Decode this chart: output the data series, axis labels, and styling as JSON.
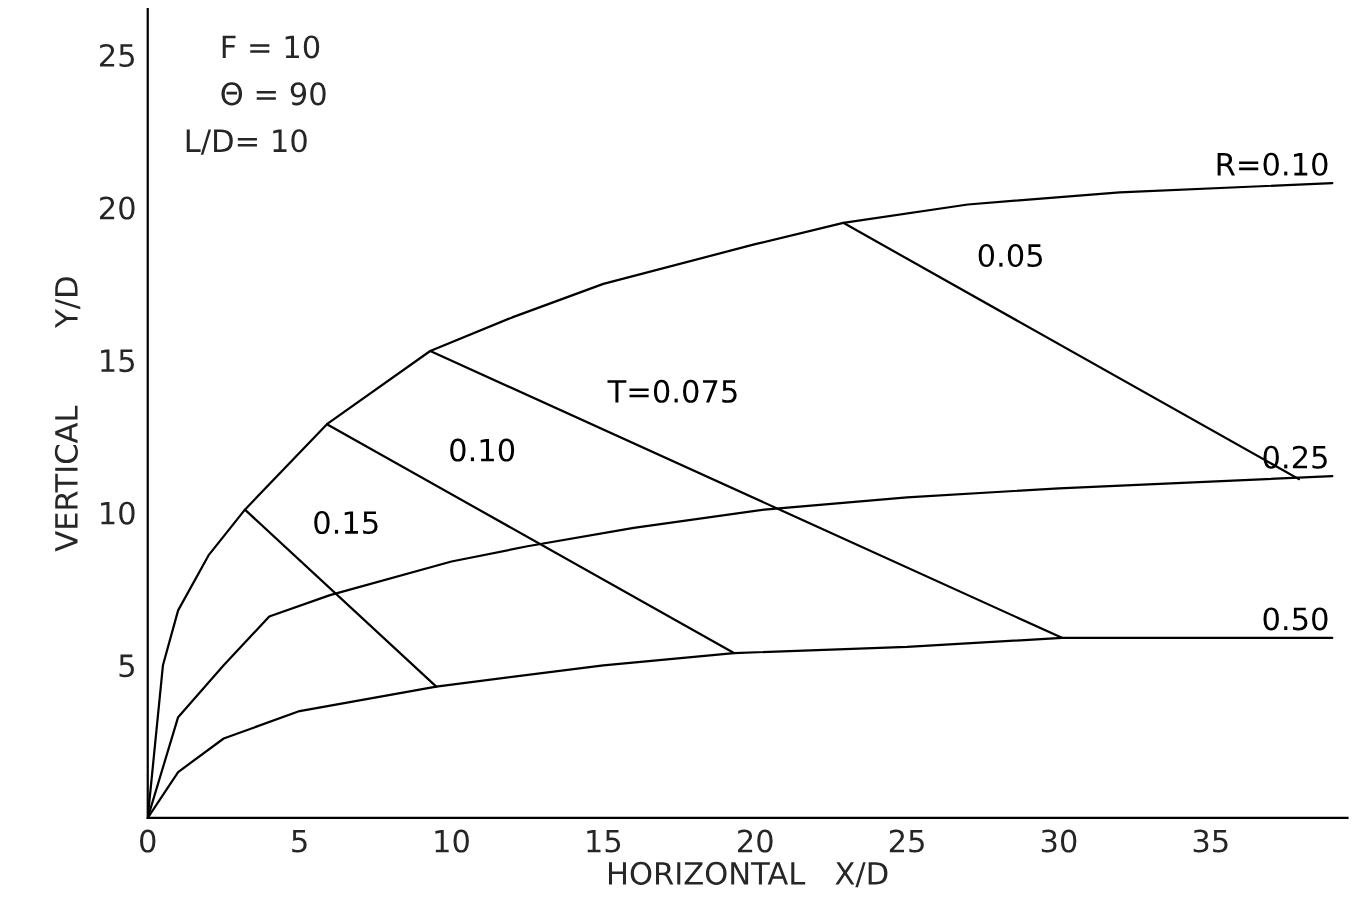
{
  "chart_data": {
    "type": "line",
    "xlabel": "HORIZONTAL   X/D",
    "ylabel": "VERTICAL        Y/D",
    "xlim": [
      0,
      39.5
    ],
    "ylim": [
      0,
      26.5
    ],
    "xticks": [
      0,
      5,
      10,
      15,
      20,
      25,
      30,
      35
    ],
    "yticks": [
      5,
      10,
      15,
      20,
      25
    ],
    "grid": false,
    "marker": "none",
    "line_style": "solid",
    "series": [
      {
        "name": "R=0.10",
        "color": "#000000",
        "x": [
          0,
          0.5,
          1,
          2,
          3.2,
          5.9,
          9.3,
          12,
          15,
          20,
          22.9,
          27,
          32,
          39
        ],
        "values": [
          0,
          5,
          6.8,
          8.6,
          10.1,
          12.9,
          15.3,
          16.4,
          17.5,
          18.8,
          19.5,
          20.1,
          20.5,
          20.8
        ]
      },
      {
        "name": "0.25",
        "color": "#000000",
        "x": [
          0,
          1,
          2.5,
          4,
          6,
          10,
          12.5,
          16,
          20.3,
          25,
          30,
          39
        ],
        "values": [
          0,
          3.3,
          5,
          6.6,
          7.3,
          8.4,
          8.9,
          9.5,
          10.1,
          10.5,
          10.8,
          11.2
        ]
      },
      {
        "name": "0.50",
        "color": "#000000",
        "x": [
          0,
          1,
          2.5,
          5,
          9.5,
          15,
          19.3,
          25,
          30.1,
          39
        ],
        "values": [
          0,
          1.5,
          2.6,
          3.5,
          4.3,
          5.0,
          5.4,
          5.6,
          5.9,
          5.9
        ]
      },
      {
        "name": "0.15",
        "color": "#000000",
        "x": [
          3.2,
          9.5
        ],
        "values": [
          10.1,
          4.3
        ]
      },
      {
        "name": "0.10",
        "color": "#000000",
        "x": [
          5.9,
          19.3
        ],
        "values": [
          12.9,
          5.4
        ]
      },
      {
        "name": "T=0.075",
        "color": "#000000",
        "x": [
          9.3,
          30.1
        ],
        "values": [
          15.3,
          5.9
        ]
      },
      {
        "name": "0.05",
        "color": "#000000",
        "x": [
          22.9,
          37.9
        ],
        "values": [
          19.5,
          11.1
        ]
      }
    ],
    "annotations": [
      "F = 10",
      "Θ = 90",
      "L/D= 10"
    ]
  }
}
